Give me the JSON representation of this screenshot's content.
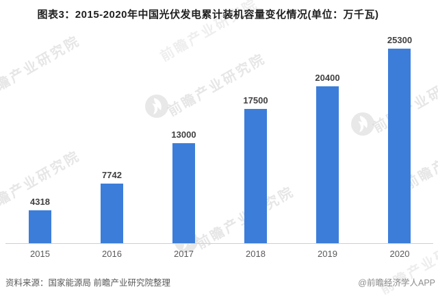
{
  "title": "图表3：2015-2020年中国光伏发电累计装机容量变化情况(单位：万千瓦)",
  "chart_data": {
    "type": "bar",
    "categories": [
      "2015",
      "2016",
      "2017",
      "2018",
      "2019",
      "2020"
    ],
    "values": [
      4318,
      7742,
      13000,
      17500,
      20400,
      25300
    ],
    "title": "图表3：2015-2020年中国光伏发电累计装机容量变化情况(单位：万千瓦)",
    "unit": "万千瓦",
    "xlabel": "",
    "ylabel": "",
    "ylim": [
      0,
      25300
    ],
    "gridlines": false,
    "legend": null,
    "value_labels_shown": true,
    "x_axis_line_shown": true,
    "y_axis_shown": false
  },
  "footer": {
    "source": "资料来源：国家能源局 前瞻产业研究院整理",
    "brand": "@前瞻经济学人APP"
  },
  "watermark": {
    "text": "前瞻产业研究院"
  },
  "colors": {
    "bar": "#3c7dd9",
    "title_text": "#1f1f1f",
    "value_label": "#404040",
    "tick_label": "#595959",
    "axis_line": "#cfcfcf",
    "source_text": "#595959",
    "brand_text": "#8c8c8c",
    "watermark": "#c6c6c6"
  }
}
